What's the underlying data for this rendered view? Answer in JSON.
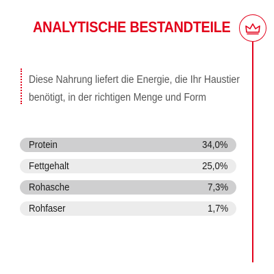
{
  "header": {
    "title": "ANALYTISCHE BESTANDTEILE",
    "emblem_icon": "crown-icon"
  },
  "intro": {
    "line1": "Diese Nahrung liefert die Energie, die Ihr Haustier",
    "line2": "benötigt, in der richtigen Menge und Form"
  },
  "nutrients": [
    {
      "name": "Protein",
      "value": "34,0%"
    },
    {
      "name": "Fettgehalt",
      "value": "25,0%"
    },
    {
      "name": "Rohasche",
      "value": "7,3%"
    },
    {
      "name": "Rohfaser",
      "value": "1,7%"
    }
  ],
  "colors": {
    "accent": "#e2001a",
    "row_dark": "#cfcfd0",
    "row_light": "#ececec",
    "text": "#555555"
  }
}
